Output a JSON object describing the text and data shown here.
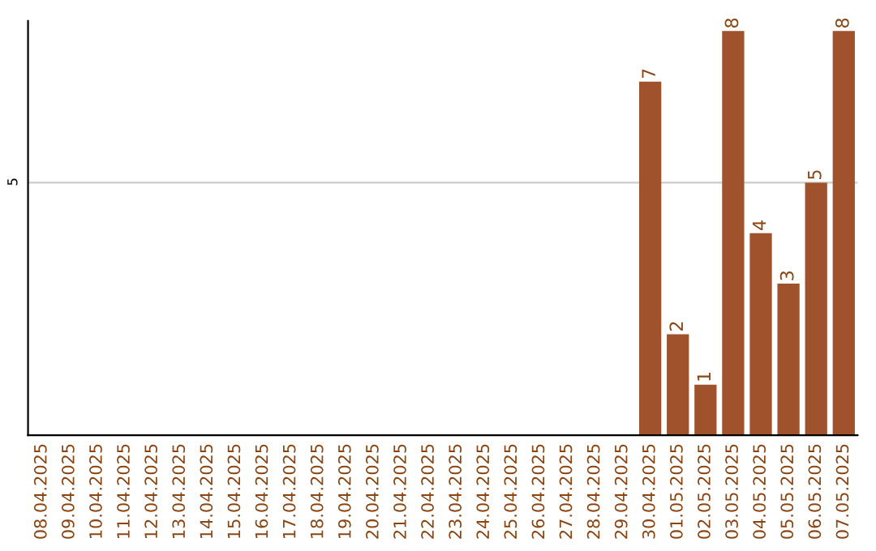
{
  "chart_data": {
    "type": "bar",
    "ylim": [
      0,
      8.2
    ],
    "categories": [
      "08.04.2025",
      "09.04.2025",
      "10.04.2025",
      "11.04.2025",
      "12.04.2025",
      "13.04.2025",
      "14.04.2025",
      "15.04.2025",
      "16.04.2025",
      "17.04.2025",
      "18.04.2025",
      "19.04.2025",
      "20.04.2025",
      "21.04.2025",
      "22.04.2025",
      "23.04.2025",
      "24.04.2025",
      "25.04.2025",
      "26.04.2025",
      "27.04.2025",
      "28.04.2025",
      "29.04.2025",
      "30.04.2025",
      "01.05.2025",
      "02.05.2025",
      "03.05.2025",
      "04.05.2025",
      "05.05.2025",
      "06.05.2025",
      "07.05.2025"
    ],
    "values": [
      null,
      null,
      null,
      null,
      null,
      null,
      null,
      null,
      null,
      null,
      null,
      null,
      null,
      null,
      null,
      null,
      null,
      null,
      null,
      null,
      null,
      null,
      7,
      2,
      1,
      8,
      4,
      3,
      5,
      8
    ],
    "value_labels": [
      null,
      null,
      null,
      null,
      null,
      null,
      null,
      null,
      null,
      null,
      null,
      null,
      null,
      null,
      null,
      null,
      null,
      null,
      null,
      null,
      null,
      null,
      "7",
      "2",
      "1",
      "8",
      "4",
      "3",
      "5",
      "8"
    ],
    "color": "#a0522d",
    "yticks": [
      5
    ],
    "grid": "y"
  }
}
